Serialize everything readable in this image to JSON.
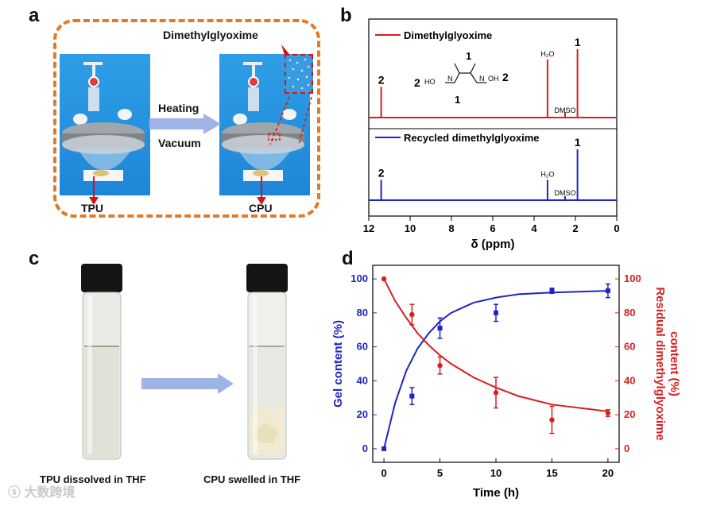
{
  "panel_a": {
    "letter": "a",
    "inset_label": "Dimethylglyoxime",
    "arrow_top": "Heating",
    "arrow_bottom": "Vacuum",
    "left_label": "TPU",
    "right_label": "CPU"
  },
  "panel_b": {
    "letter": "b",
    "legend_top": "Dimethylglyoxime",
    "legend_bottom": "Recycled dimethylglyoxime",
    "structure_labels": {
      "top1": "1",
      "bottom1": "1",
      "left2": "2",
      "right2": "2",
      "ho": "HO",
      "oh": "OH",
      "n_left": "N",
      "n_right": "N"
    },
    "peak_labels": {
      "h2o": "H₂O",
      "dmso": "DMSO",
      "one": "1",
      "two": "2"
    },
    "xlabel": "δ (ppm)",
    "xticks": [
      "12",
      "10",
      "8",
      "6",
      "4",
      "2",
      "0"
    ]
  },
  "panel_c": {
    "letter": "c",
    "left_caption": "TPU dissolved in THF",
    "right_caption": "CPU swelled in THF"
  },
  "panel_d": {
    "letter": "d",
    "xlabel": "Time (h)",
    "ylabel_left": "Gel content (%)",
    "ylabel_right_1": "Residual dimethylglyoxime",
    "ylabel_right_2": "content (%)"
  },
  "watermark": "大数跨境",
  "colors": {
    "blue": "#1f24c4",
    "red": "#d81e1e",
    "orange": "#e07b2a",
    "arrow": "#9fb3e6"
  },
  "chart_data": [
    {
      "type": "line",
      "title": "",
      "xlabel": "δ (ppm)",
      "xlim": [
        12,
        0
      ],
      "xticks": [
        12,
        10,
        8,
        6,
        4,
        2,
        0
      ],
      "series": [
        {
          "name": "Dimethylglyoxime",
          "peaks": [
            {
              "ppm": 11.4,
              "label": "2",
              "height": 0.45
            },
            {
              "ppm": 3.35,
              "label": "H₂O",
              "height": 0.85
            },
            {
              "ppm": 2.5,
              "label": "DMSO",
              "height": 0.08
            },
            {
              "ppm": 1.9,
              "label": "1",
              "height": 1.0
            }
          ]
        },
        {
          "name": "Recycled dimethylglyoxime",
          "peaks": [
            {
              "ppm": 11.4,
              "label": "2",
              "height": 0.4
            },
            {
              "ppm": 3.35,
              "label": "H₂O",
              "height": 0.4
            },
            {
              "ppm": 2.5,
              "label": "DMSO",
              "height": 0.08
            },
            {
              "ppm": 1.9,
              "label": "1",
              "height": 1.0
            }
          ]
        }
      ]
    },
    {
      "type": "scatter",
      "title": "",
      "xlabel": "Time (h)",
      "ylabel": "Gel content (%)",
      "ylabel_right": "Residual dimethylglyoxime content (%)",
      "xlim": [
        -1,
        21
      ],
      "ylim": [
        -8,
        108
      ],
      "xticks": [
        0,
        5,
        10,
        15,
        20
      ],
      "yticks": [
        0,
        20,
        40,
        60,
        80,
        100
      ],
      "series": [
        {
          "name": "Gel content",
          "axis": "left",
          "x": [
            0,
            2.5,
            5,
            10,
            15,
            20
          ],
          "y": [
            0,
            31,
            71,
            80,
            93,
            93
          ],
          "err": [
            0,
            5,
            6,
            5,
            1.5,
            4
          ],
          "fit_x": [
            0,
            1,
            2,
            3,
            4,
            5,
            6,
            8,
            10,
            12,
            15,
            20
          ],
          "fit_y": [
            0,
            27,
            46,
            59,
            68,
            75,
            80,
            86,
            89,
            91,
            92,
            93
          ]
        },
        {
          "name": "Residual dimethylglyoxime",
          "axis": "right",
          "x": [
            0,
            2.5,
            5,
            10,
            15,
            20
          ],
          "y": [
            100,
            79,
            49,
            33,
            17,
            21
          ],
          "err": [
            0,
            6,
            5,
            9,
            8,
            2
          ],
          "fit_x": [
            0,
            1,
            2,
            3,
            4,
            5,
            6,
            8,
            10,
            12,
            15,
            20
          ],
          "fit_y": [
            100,
            87,
            77,
            68,
            61,
            55,
            50,
            42,
            36,
            31,
            26,
            22
          ]
        }
      ]
    }
  ]
}
